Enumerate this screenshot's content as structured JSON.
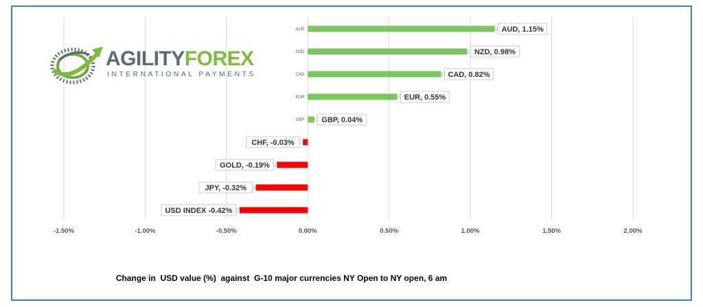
{
  "logo": {
    "name_part1": "AGILITY",
    "name_part2": "FOREX",
    "tagline": "INTERNATIONAL PAYMENTS",
    "colors": {
      "gray": "#5a6b73",
      "green": "#7dbb3e"
    }
  },
  "caption": "Change in  USD value (%)  against  G-10 major currencies NY Open to NY open, 6 am",
  "chart_data": {
    "type": "bar",
    "orientation": "horizontal",
    "title": "",
    "xlabel": "",
    "ylabel": "",
    "xlim": [
      -1.5,
      2.0
    ],
    "x_ticks": [
      -1.5,
      -1.0,
      -0.5,
      0.0,
      0.5,
      1.0,
      1.5,
      2.0
    ],
    "x_tick_labels": [
      "-1.50%",
      "-1.00%",
      "-0.50%",
      "0.00%",
      "0.50%",
      "1.00%",
      "1.50%",
      "2.00%"
    ],
    "grid": true,
    "legend": "none",
    "colors": {
      "positive": "#7dc560",
      "negative": "#ff0000"
    },
    "categories": [
      "AUD",
      "NZD",
      "CAD",
      "EUR",
      "GBP",
      "CHF",
      "GOLD",
      "JPY",
      "USD INDEX"
    ],
    "axis_category_labels": [
      "AUD",
      "NZD",
      "CAD",
      "EUR",
      "GBP",
      "",
      "",
      "",
      ""
    ],
    "values": [
      1.15,
      0.98,
      0.82,
      0.55,
      0.04,
      -0.03,
      -0.19,
      -0.32,
      -0.42
    ],
    "data_labels": [
      "AUD, 1.15%",
      "NZD, 0.98%",
      "CAD, 0.82%",
      "EUR, 0.55%",
      "GBP, 0.04%",
      "CHF, -0.03%",
      "GOLD, -0.19%",
      "JPY, -0.32%",
      "USD INDEX -0.42%"
    ]
  }
}
